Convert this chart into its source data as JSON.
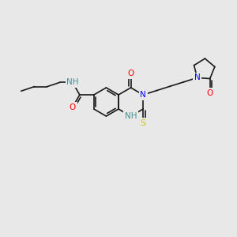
{
  "background_color": "#e8e8e8",
  "bond_color": "#1a1a1a",
  "atom_colors": {
    "N": "#0000ff",
    "NH": "#4a9090",
    "O": "#ff0000",
    "S": "#cccc00",
    "C": "#1a1a1a"
  },
  "font_size_atom": 7.5,
  "font_size_small": 6.5,
  "line_width": 1.2
}
